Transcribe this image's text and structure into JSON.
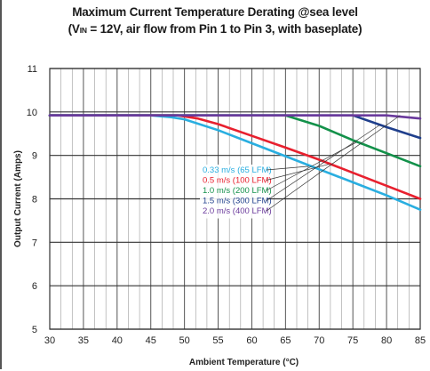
{
  "chart_data": {
    "type": "line",
    "title_line1": "Maximum Current Temperature Derating @sea level",
    "title_line2_prefix": "(V",
    "title_line2_subscript": "IN",
    "title_line2_suffix": " = 12V, air flow from Pin 1 to Pin 3, with baseplate)",
    "xlabel": "Ambient Temperature (°C)",
    "ylabel": "Output Current (Amps)",
    "xlim": [
      30,
      85
    ],
    "ylim": [
      5,
      11
    ],
    "x_ticks": [
      30,
      35,
      40,
      45,
      50,
      55,
      60,
      65,
      70,
      75,
      80,
      85
    ],
    "y_ticks": [
      5,
      6,
      7,
      8,
      9,
      10,
      11
    ],
    "grid": true,
    "legend_placement": "center-right",
    "series": [
      {
        "name": "0.33 m/s (65 LFM)",
        "color": "#29aee0",
        "x": [
          30,
          45,
          48,
          50,
          55,
          60,
          65,
          70,
          75,
          80,
          85
        ],
        "y": [
          9.92,
          9.92,
          9.88,
          9.83,
          9.58,
          9.28,
          8.98,
          8.68,
          8.38,
          8.08,
          7.75
        ]
      },
      {
        "name": "0.5 m/s (100 LFM)",
        "color": "#e8202e",
        "x": [
          30,
          49,
          52,
          55,
          60,
          65,
          70,
          75,
          80,
          85
        ],
        "y": [
          9.92,
          9.92,
          9.85,
          9.72,
          9.45,
          9.18,
          8.9,
          8.6,
          8.3,
          8.0
        ]
      },
      {
        "name": "1.0 m/s (200 LFM)",
        "color": "#13914a",
        "x": [
          30,
          65,
          70,
          75,
          80,
          85
        ],
        "y": [
          9.92,
          9.92,
          9.68,
          9.35,
          9.05,
          8.75
        ]
      },
      {
        "name": "1.5 m/s (300 LFM)",
        "color": "#1f3f8c",
        "x": [
          30,
          75,
          80,
          85
        ],
        "y": [
          9.92,
          9.92,
          9.65,
          9.4
        ]
      },
      {
        "name": "2.0 m/s (400 LFM)",
        "color": "#6a3a9c",
        "x": [
          30,
          80,
          85
        ],
        "y": [
          9.92,
          9.92,
          9.85
        ]
      }
    ],
    "fine_gridlines": [
      1.5,
      3.5,
      6
    ]
  }
}
